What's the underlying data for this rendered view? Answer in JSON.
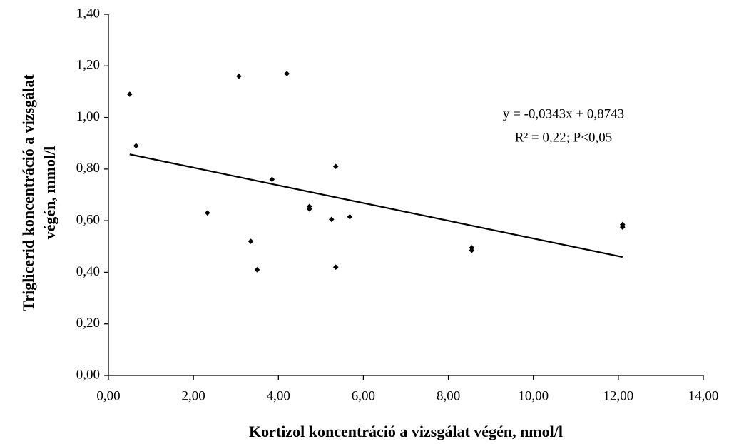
{
  "chart_data": {
    "type": "scatter",
    "xlabel": "Kortizol koncentráció a vizsgálat végén, nmol/l",
    "ylabel": [
      "Triglicerid koncentráció a vizsgálat",
      "végén, mmol/l"
    ],
    "annotation": [
      "y = -0,0343x + 0,8743",
      "R² = 0,22; P<0,05"
    ],
    "color": "#000000",
    "x": [
      0.5,
      0.65,
      2.33,
      3.07,
      3.35,
      3.5,
      3.85,
      4.2,
      4.73,
      4.73,
      5.25,
      5.35,
      5.35,
      5.68,
      8.55,
      8.55,
      12.1,
      12.1
    ],
    "values": [
      1.09,
      0.89,
      0.63,
      1.16,
      0.52,
      0.41,
      0.76,
      1.17,
      0.645,
      0.655,
      0.605,
      0.81,
      0.42,
      0.615,
      0.495,
      0.485,
      0.585,
      0.575
    ],
    "trendline": {
      "x": [
        0.5,
        12.1
      ],
      "y": [
        0.857,
        0.459
      ]
    },
    "xlim": [
      0,
      14
    ],
    "xticks": [
      {
        "value": 0,
        "label": "0,00"
      },
      {
        "value": 2,
        "label": "2,00"
      },
      {
        "value": 4,
        "label": "4,00"
      },
      {
        "value": 6,
        "label": "6,00"
      },
      {
        "value": 8,
        "label": "8,00"
      },
      {
        "value": 10,
        "label": "10,00"
      },
      {
        "value": 12,
        "label": "12,00"
      },
      {
        "value": 14,
        "label": "14,00"
      }
    ],
    "ylim": [
      0,
      1.4
    ],
    "yticks": [
      {
        "value": 0,
        "label": "0,00"
      },
      {
        "value": 0.2,
        "label": "0,20"
      },
      {
        "value": 0.4,
        "label": "0,40"
      },
      {
        "value": 0.6,
        "label": "0,60"
      },
      {
        "value": 0.8,
        "label": "0,80"
      },
      {
        "value": 1.0,
        "label": "1,00"
      },
      {
        "value": 1.2,
        "label": "1,20"
      },
      {
        "value": 1.4,
        "label": "1,40"
      }
    ],
    "grid": false
  }
}
